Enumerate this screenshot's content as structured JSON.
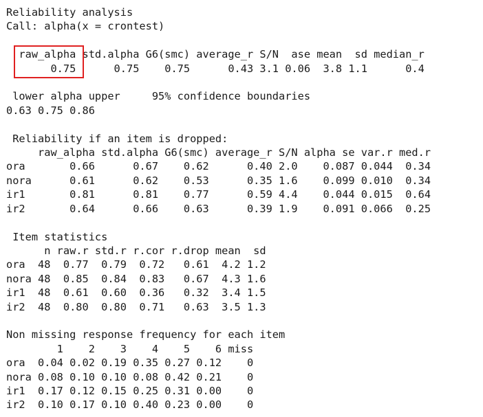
{
  "console": {
    "lines": [
      "Reliability analysis",
      "Call: alpha(x = crontest)",
      "",
      "  raw_alpha std.alpha G6(smc) average_r S/N  ase mean  sd median_r",
      "       0.75      0.75    0.75      0.43 3.1 0.06  3.8 1.1      0.4",
      "",
      " lower alpha upper     95% confidence boundaries",
      "0.63 0.75 0.86",
      "",
      " Reliability if an item is dropped:",
      "     raw_alpha std.alpha G6(smc) average_r S/N alpha se var.r med.r",
      "ora       0.66      0.67    0.62      0.40 2.0    0.087 0.044  0.34",
      "nora      0.61      0.62    0.53      0.35 1.6    0.099 0.010  0.34",
      "ir1       0.81      0.81    0.77      0.59 4.4    0.044 0.015  0.64",
      "ir2       0.64      0.66    0.63      0.39 1.9    0.091 0.066  0.25",
      "",
      " Item statistics",
      "      n raw.r std.r r.cor r.drop mean  sd",
      "ora  48  0.77  0.79  0.72   0.61  4.2 1.2",
      "nora 48  0.85  0.84  0.83   0.67  4.3 1.6",
      "ir1  48  0.61  0.60  0.36   0.32  3.4 1.5",
      "ir2  48  0.80  0.80  0.71   0.63  3.5 1.3",
      "",
      "Non missing response frequency for each item",
      "        1    2    3    4    5    6 miss",
      "ora  0.04 0.02 0.19 0.35 0.27 0.12    0",
      "nora 0.08 0.10 0.10 0.08 0.42 0.21    0",
      "ir1  0.17 0.12 0.15 0.25 0.31 0.00    0",
      "ir2  0.10 0.17 0.10 0.40 0.23 0.00    0"
    ]
  },
  "colors": {
    "text": "#1a1a1a",
    "highlight_border": "#e02020",
    "background": "#ffffff"
  }
}
